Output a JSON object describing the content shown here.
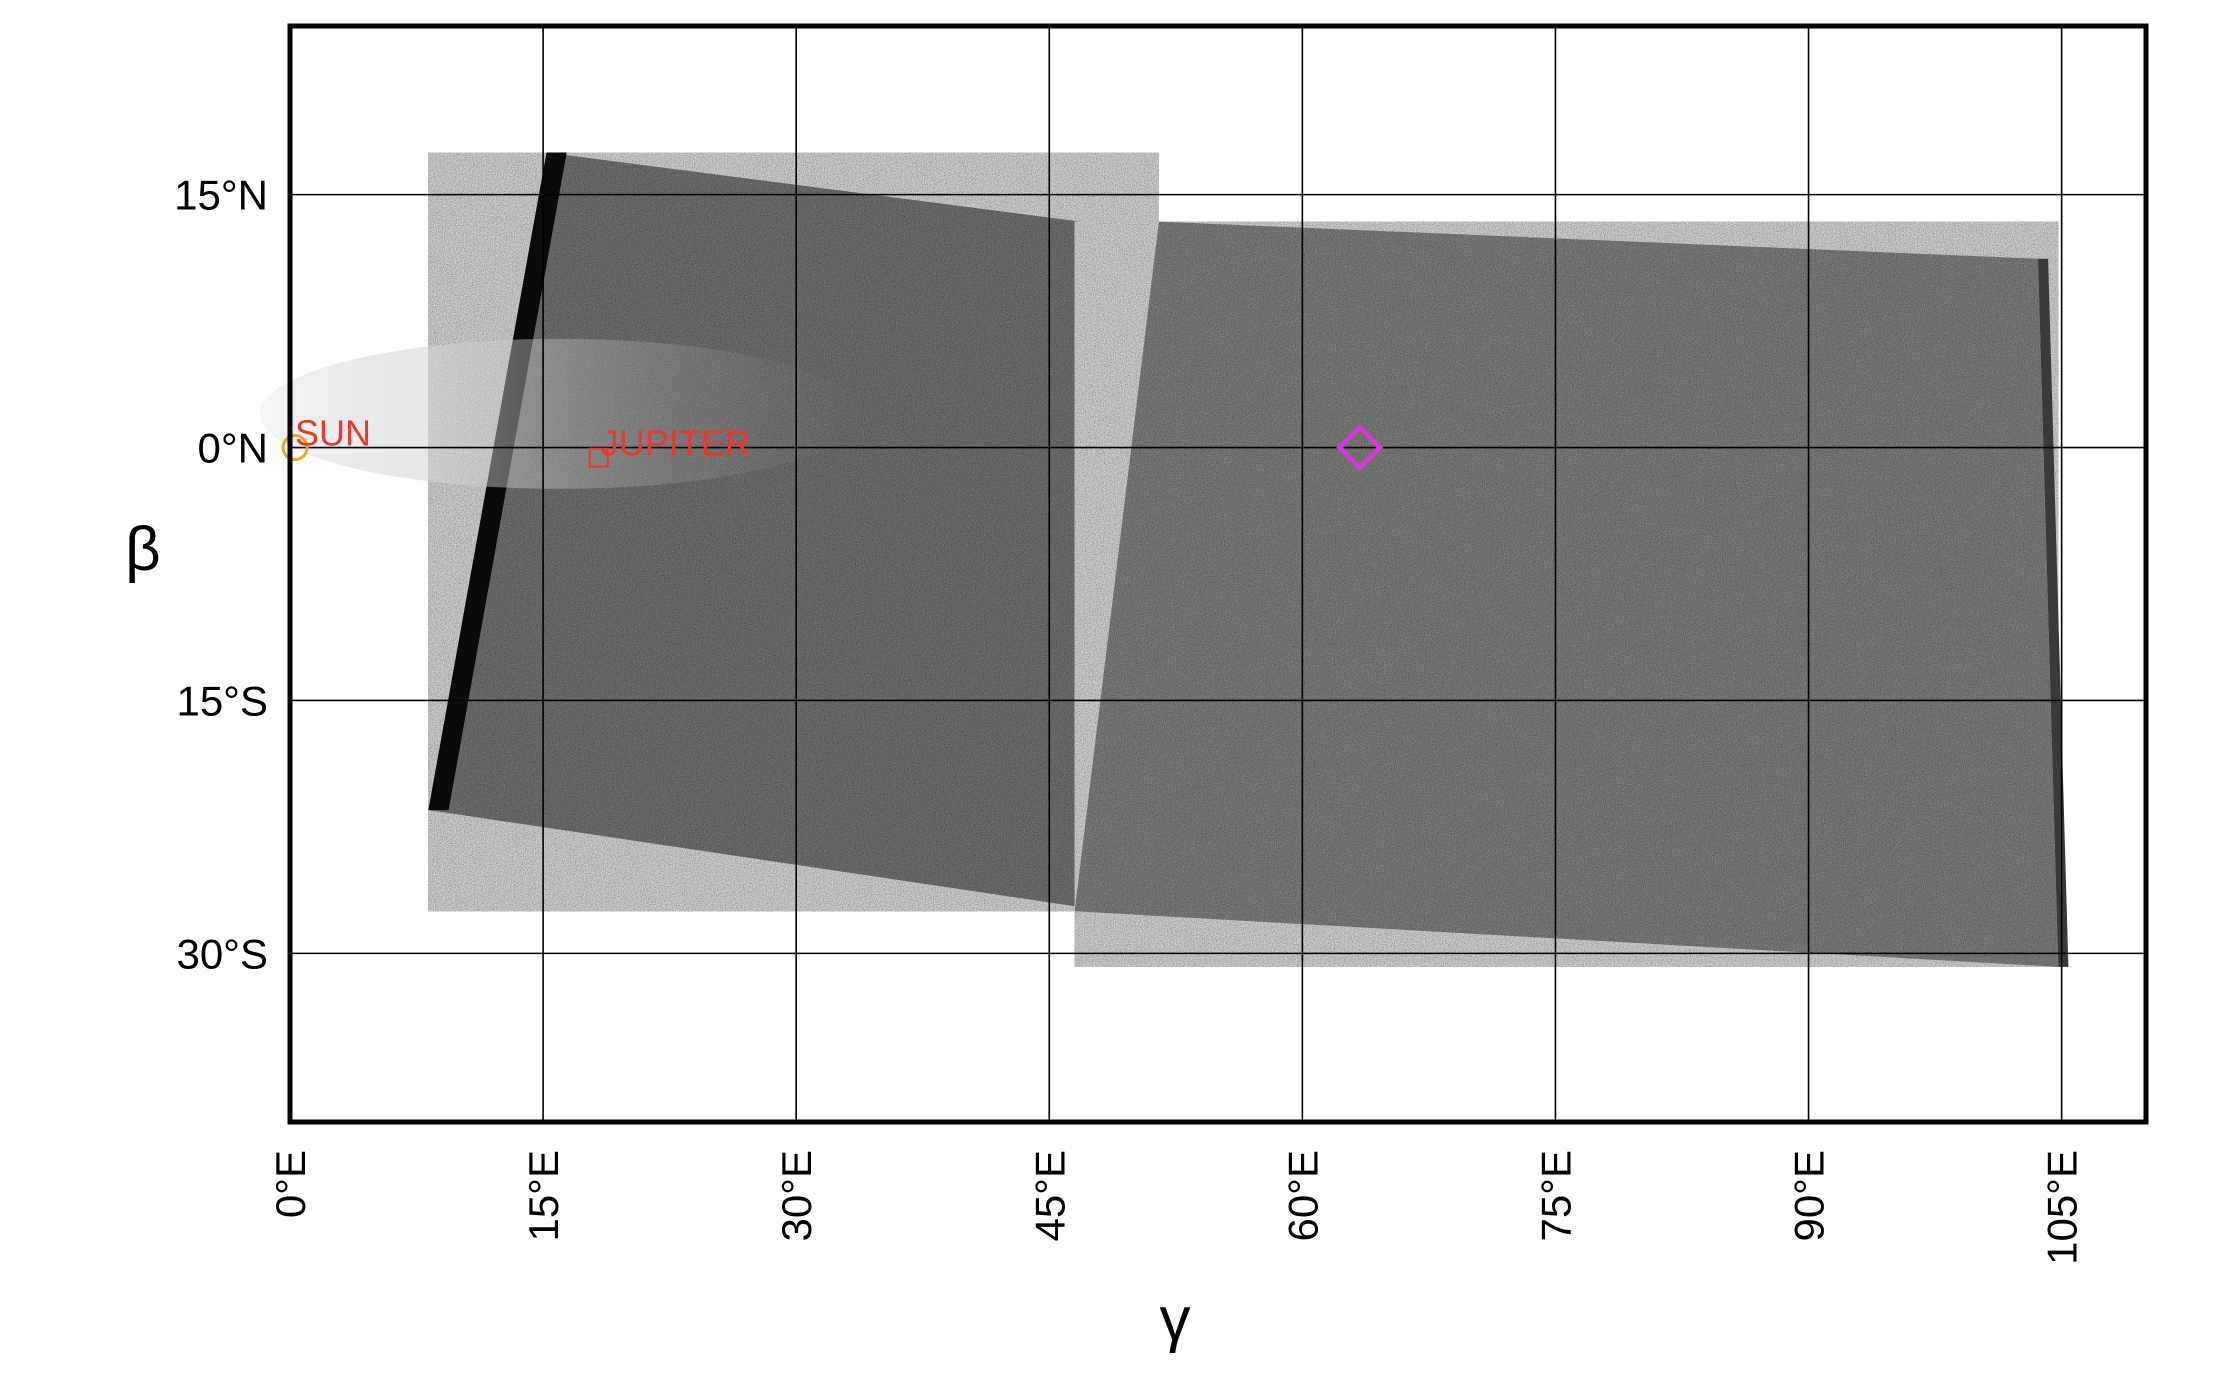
{
  "chart_data": {
    "type": "image_map",
    "xlabel": "γ",
    "ylabel": "β",
    "xlim": [
      0,
      110
    ],
    "ylim": [
      -40,
      25
    ],
    "x_ticks": [
      0,
      15,
      30,
      45,
      60,
      75,
      90,
      105
    ],
    "x_tick_labels": [
      "0°E",
      "15°E",
      "30°E",
      "45°E",
      "60°E",
      "75°E",
      "90°E",
      "105°E"
    ],
    "y_ticks": [
      15,
      0,
      -15,
      -30
    ],
    "y_tick_labels": [
      "15°N",
      "0°N",
      "15°S",
      "30°S"
    ],
    "grid": true,
    "annotations": [
      {
        "label": "SUN",
        "x": 0.3,
        "y": 0,
        "marker": "circle",
        "color": "#e8a33a",
        "label_color": "#e8392e"
      },
      {
        "label": "JUPITER",
        "x": 18.3,
        "y": -0.6,
        "marker": "square",
        "color": "#e8392e",
        "label_color": "#e8392e"
      },
      {
        "label": "",
        "x": 63.4,
        "y": 0,
        "marker": "diamond",
        "color": "#d63ad6"
      }
    ],
    "image_panels": [
      {
        "corners": [
          [
            15.2,
            17.5
          ],
          [
            51.5,
            12.8
          ],
          [
            48.5,
            -27.5
          ],
          [
            8.2,
            -21.5
          ]
        ]
      },
      {
        "corners": [
          [
            51.5,
            13.4
          ],
          [
            103.6,
            11.2
          ],
          [
            104.8,
            -30.8
          ],
          [
            46.5,
            -27.5
          ]
        ]
      }
    ]
  }
}
